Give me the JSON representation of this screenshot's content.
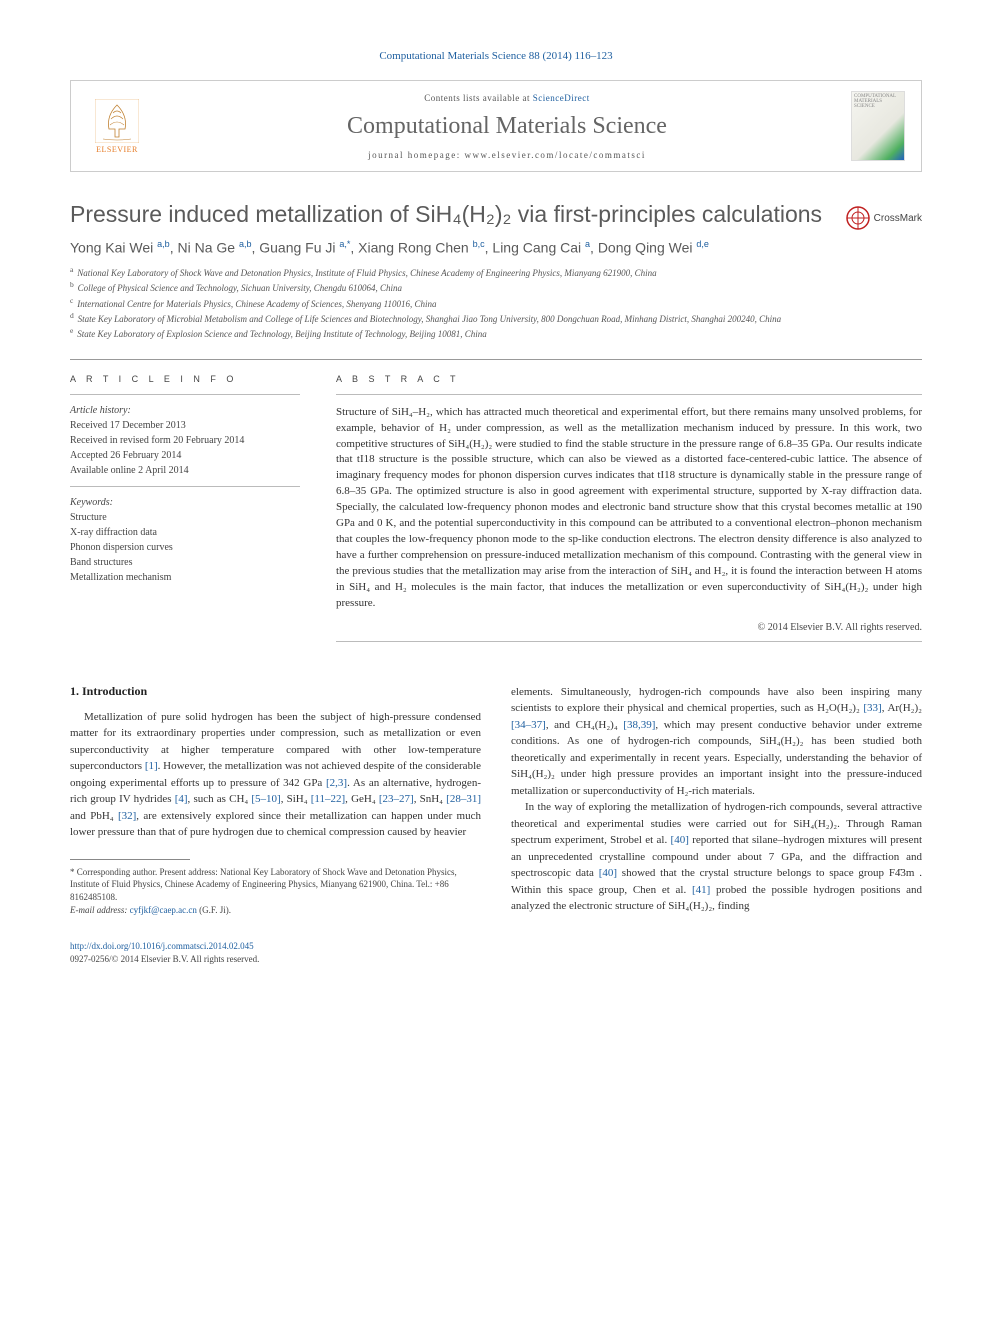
{
  "citation_line": "Computational Materials Science 88 (2014) 116–123",
  "header": {
    "contents_prefix": "Contents lists available at ",
    "contents_link": "ScienceDirect",
    "journal_name": "Computational Materials Science",
    "homepage_label": "journal homepage: www.elsevier.com/locate/commatsci",
    "elsevier_label": "ELSEVIER",
    "cover_text": "COMPUTATIONAL MATERIALS SCIENCE"
  },
  "crossmark_label": "CrossMark",
  "title": "Pressure induced metallization of SiH₄(H₂)₂ via first-principles calculations",
  "authors_html": "Yong Kai Wei <sup>a,b</sup>, Ni Na Ge <sup>a,b</sup>, Guang Fu Ji <sup>a,*</sup>, Xiang Rong Chen <sup>b,c</sup>, Ling Cang Cai <sup>a</sup>, Dong Qing Wei <sup>d,e</sup>",
  "affiliations": [
    "National Key Laboratory of Shock Wave and Detonation Physics, Institute of Fluid Physics, Chinese Academy of Engineering Physics, Mianyang 621900, China",
    "College of Physical Science and Technology, Sichuan University, Chengdu 610064, China",
    "International Centre for Materials Physics, Chinese Academy of Sciences, Shenyang 110016, China",
    "State Key Laboratory of Microbial Metabolism and College of Life Sciences and Biotechnology, Shanghai Jiao Tong University, 800 Dongchuan Road, Minhang District, Shanghai 200240, China",
    "State Key Laboratory of Explosion Science and Technology, Beijing Institute of Technology, Beijing 10081, China"
  ],
  "aff_markers": [
    "a",
    "b",
    "c",
    "d",
    "e"
  ],
  "article_info_title": "A R T I C L E   I N F O",
  "abstract_title": "A B S T R A C T",
  "history": {
    "label": "Article history:",
    "received": "Received 17 December 2013",
    "revised": "Received in revised form 20 February 2014",
    "accepted": "Accepted 26 February 2014",
    "online": "Available online 2 April 2014"
  },
  "keywords": {
    "label": "Keywords:",
    "items": [
      "Structure",
      "X-ray diffraction data",
      "Phonon dispersion curves",
      "Band structures",
      "Metallization mechanism"
    ]
  },
  "abstract_text": "Structure of SiH₄–H₂, which has attracted much theoretical and experimental effort, but there remains many unsolved problems, for example, behavior of H₂ under compression, as well as the metallization mechanism induced by pressure. In this work, two competitive structures of SiH₄(H₂)₂ were studied to find the stable structure in the pressure range of 6.8–35 GPa. Our results indicate that tI18 structure is the possible structure, which can also be viewed as a distorted face-centered-cubic lattice. The absence of imaginary frequency modes for phonon dispersion curves indicates that tI18 structure is dynamically stable in the pressure range of 6.8–35 GPa. The optimized structure is also in good agreement with experimental structure, supported by X-ray diffraction data. Specially, the calculated low-frequency phonon modes and electronic band structure show that this crystal becomes metallic at 190 GPa and 0 K, and the potential superconductivity in this compound can be attributed to a conventional electron–phonon mechanism that couples the low-frequency phonon mode to the sp-like conduction electrons. The electron density difference is also analyzed to have a further comprehension on pressure-induced metallization mechanism of this compound. Contrasting with the general view in the previous studies that the metallization may arise from the interaction of SiH₄ and H₂, it is found the interaction between H atoms in SiH₄ and H₂ molecules is the main factor, that induces the metallization or even superconductivity of SiH₄(H₂)₂ under high pressure.",
  "copyright": "© 2014 Elsevier B.V. All rights reserved.",
  "intro_heading": "1. Introduction",
  "intro_p1": "Metallization of pure solid hydrogen has been the subject of high-pressure condensed matter for its extraordinary properties under compression, such as metallization or even superconductivity at higher temperature compared with other low-temperature superconductors [1]. However, the metallization was not achieved despite of the considerable ongoing experimental efforts up to pressure of 342 GPa [2,3]. As an alternative, hydrogen-rich group IV hydrides [4], such as CH₄ [5–10], SiH₄ [11–22], GeH₄ [23–27], SnH₄ [28–31] and PbH₄ [32], are extensively explored since their metallization can happen under much lower pressure than that of pure hydrogen due to chemical compression caused by heavier",
  "intro_p2": "elements. Simultaneously, hydrogen-rich compounds have also been inspiring many scientists to explore their physical and chemical properties, such as H₂O(H₂)₂ [33], Ar(H₂)₂ [34–37], and CH₄(H₂)₄ [38,39], which may present conductive behavior under extreme conditions. As one of hydrogen-rich compounds, SiH₄(H₂)₂ has been studied both theoretically and experimentally in recent years. Especially, understanding the behavior of SiH₄(H₂)₂ under high pressure provides an important insight into the pressure-induced metallization or superconductivity of H₂-rich materials.",
  "intro_p3": "In the way of exploring the metallization of hydrogen-rich compounds, several attractive theoretical and experimental studies were carried out for SiH₄(H₂)₂. Through Raman spectrum experiment, Strobel et al. [40] reported that silane–hydrogen mixtures will present an unprecedented crystalline compound under about 7 GPa, and the diffraction and spectroscopic data [40] showed that the crystal structure belongs to space group F4̄3m . Within this space group, Chen et al. [41] probed the possible hydrogen positions and analyzed the electronic structure of SiH₄(H₂)₂, finding",
  "footnote": {
    "corr": "* Corresponding author. Present address: National Key Laboratory of Shock Wave and Detonation Physics, Institute of Fluid Physics, Chinese Academy of Engineering Physics, Mianyang 621900, China. Tel.: +86 8162485108.",
    "email_label": "E-mail address:",
    "email": "cyfjkf@caep.ac.cn",
    "email_author": "(G.F. Ji)."
  },
  "bottom": {
    "doi": "http://dx.doi.org/10.1016/j.commatsci.2014.02.045",
    "issn_line": "0927-0256/© 2014 Elsevier B.V. All rights reserved."
  },
  "colors": {
    "link": "#2060a0",
    "text": "#333333",
    "title_gray": "#5a5a5a",
    "border": "#cccccc",
    "elsevier_orange": "#e67d29"
  }
}
